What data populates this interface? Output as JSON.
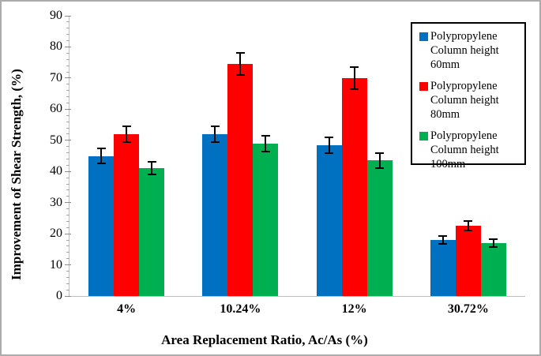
{
  "figure": {
    "background": "#FFFFFF",
    "outer_border_color": "#ABABAB",
    "axis_line_color": "#BFBFBF",
    "tick_color": "#8C8C8C",
    "error_bar_color": "#000000"
  },
  "chart_data": {
    "type": "bar",
    "title": "",
    "xlabel": "Area Replacement Ratio, Ac/As (%)",
    "ylabel": "Improvement of Shear Strength, (%)",
    "categories": [
      "4%",
      "10.24%",
      "12%",
      "30.72%"
    ],
    "series": [
      {
        "name": "Polypropylene Column height 60mm",
        "color": "#0070C0",
        "values": [
          45,
          52,
          48.5,
          18
        ],
        "errors": [
          2.5,
          2.5,
          2.5,
          1.2
        ]
      },
      {
        "name": "Polypropylene Column height 80mm",
        "color": "#FF0000",
        "values": [
          52,
          74.5,
          70,
          22.5
        ],
        "errors": [
          2.5,
          3.5,
          3.5,
          1.5
        ]
      },
      {
        "name": "Polypropylene Column height 100mm",
        "color": "#00B050",
        "values": [
          41,
          49,
          43.5,
          17
        ],
        "errors": [
          2,
          2.5,
          2.5,
          1.2
        ]
      }
    ],
    "ylim": [
      0,
      90
    ],
    "yticks": [
      0,
      10,
      20,
      30,
      40,
      50,
      60,
      70,
      80,
      90
    ],
    "ytick_step": 10,
    "yminor_step": 2,
    "grid": false,
    "error_bars": true,
    "legend_position": "top-right"
  }
}
